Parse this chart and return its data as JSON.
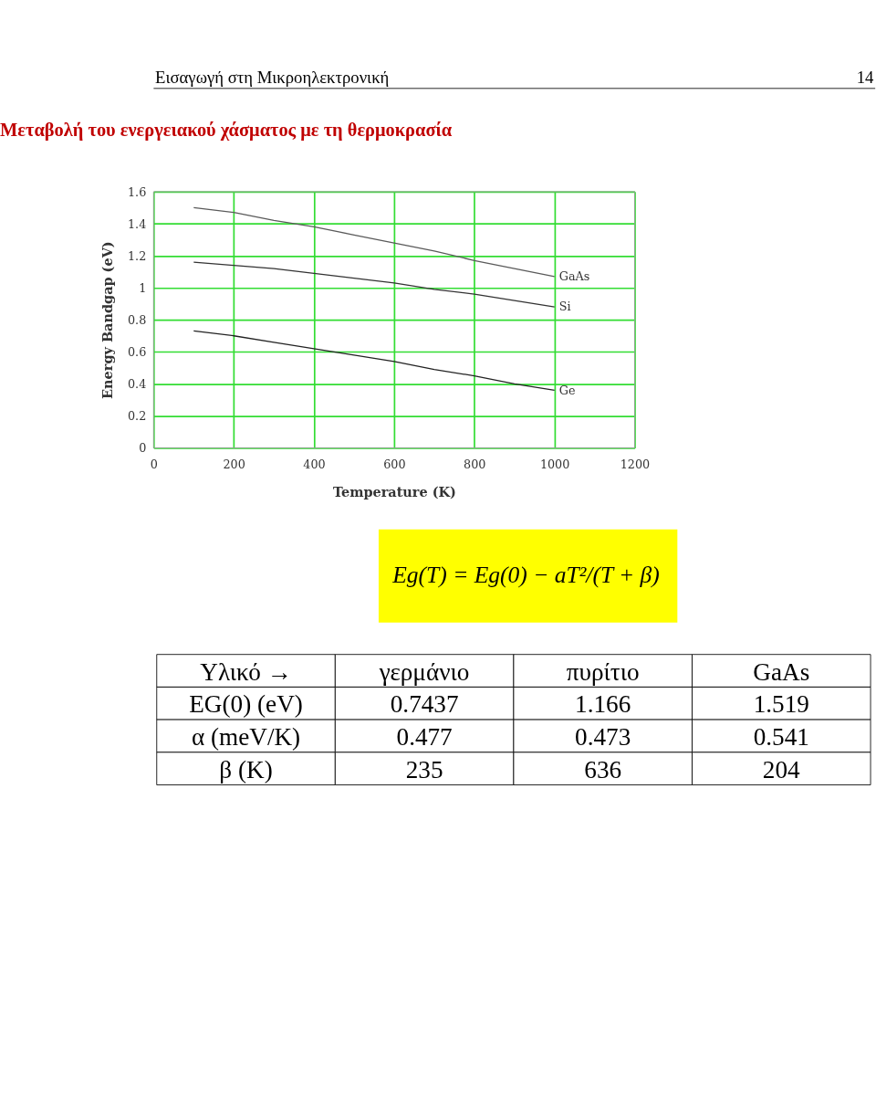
{
  "chart_data": {
    "type": "line",
    "title": "Μεταβολή του ενεργειακού χάσματος με τη θερμοκρασία",
    "xlabel": "Temperature (K)",
    "ylabel": "Energy Bandgap (eV)",
    "x": [
      100,
      200,
      300,
      400,
      500,
      600,
      700,
      800,
      900,
      1000
    ],
    "series": [
      {
        "name": "GaAs",
        "color": "#5a5a5a",
        "values": [
          1.5,
          1.47,
          1.42,
          1.38,
          1.33,
          1.28,
          1.23,
          1.17,
          1.12,
          1.07
        ]
      },
      {
        "name": "Si",
        "color": "#333333",
        "values": [
          1.16,
          1.14,
          1.12,
          1.09,
          1.06,
          1.03,
          0.99,
          0.96,
          0.92,
          0.88
        ]
      },
      {
        "name": "Ge",
        "color": "#222222",
        "values": [
          0.73,
          0.7,
          0.66,
          0.62,
          0.58,
          0.54,
          0.49,
          0.45,
          0.4,
          0.36
        ]
      }
    ],
    "xlim": [
      0,
      1200
    ],
    "xticks": [
      0,
      200,
      400,
      600,
      800,
      1000,
      1200
    ],
    "ylim": [
      0,
      1.6
    ],
    "yticks": [
      0,
      0.2,
      0.4,
      0.6,
      0.8,
      1,
      1.2,
      1.4,
      1.6
    ],
    "grid": true,
    "legend": false,
    "marker": "none",
    "line_style": "solid",
    "annotations": [
      "Εισαγωγή στη Μικροηλεκτρονική",
      "14",
      "Eg(T) = Eg(0) − aT²/(T + β)",
      "Υλικό →",
      "γερμάνιο",
      "πυρίτιο",
      "GaAs",
      "EG(0) (eV)",
      "0.7437",
      "1.166",
      "1.519",
      "α (meV/K)",
      "0.477",
      "0.473",
      "0.541",
      "β (K)",
      "235",
      "636",
      "204"
    ]
  }
}
